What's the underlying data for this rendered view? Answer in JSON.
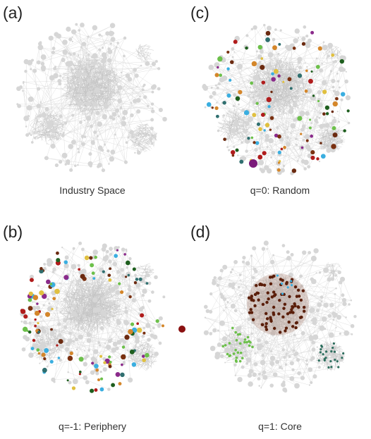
{
  "panels": [
    {
      "label": "(a)",
      "caption": "Industry Space"
    },
    {
      "label": "(c)",
      "caption": "q=0: Random"
    },
    {
      "label": "(b)",
      "caption": "q=-1: Periphery"
    },
    {
      "label": "(d)",
      "caption": "q=1: Core"
    }
  ]
}
